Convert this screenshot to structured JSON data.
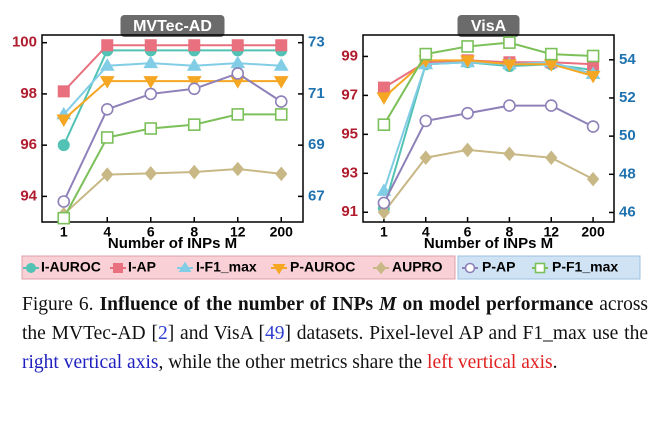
{
  "chart_data": [
    {
      "type": "line",
      "title": "MVTec-AD",
      "xlabel": "Number of INPs M",
      "categories": [
        "1",
        "4",
        "6",
        "8",
        "12",
        "200"
      ],
      "ylim": [
        93,
        100.3
      ],
      "yticks": [
        94,
        96,
        98,
        100
      ],
      "y2lim": [
        66,
        73.3
      ],
      "y2ticks": [
        67,
        69,
        71,
        73
      ],
      "series": [
        {
          "name": "I-AUROC",
          "color": "#52c2b4",
          "marker": "circle",
          "values": [
            96.0,
            99.7,
            99.7,
            99.7,
            99.7,
            99.7
          ]
        },
        {
          "name": "I-AP",
          "color": "#e8707f",
          "marker": "square",
          "values": [
            98.1,
            99.9,
            99.9,
            99.9,
            99.9,
            99.9
          ]
        },
        {
          "name": "I-F1_max",
          "color": "#82cde6",
          "marker": "triangle-up",
          "values": [
            97.2,
            99.1,
            99.2,
            99.1,
            99.2,
            99.1
          ]
        },
        {
          "name": "P-AUROC",
          "color": "#f5a623",
          "marker": "triangle-down",
          "values": [
            97.0,
            98.5,
            98.5,
            98.5,
            98.5,
            98.5
          ]
        },
        {
          "name": "AUPRO",
          "color": "#c8b886",
          "marker": "diamond",
          "values": [
            93.3,
            94.85,
            94.9,
            94.95,
            95.07,
            94.88
          ]
        },
        {
          "name": "P-AP",
          "color": "#8e80b8",
          "marker": "circle-open",
          "axis": "y2",
          "values": [
            66.8,
            70.4,
            71.0,
            71.2,
            71.8,
            70.7
          ]
        },
        {
          "name": "P-F1_max",
          "color": "#7cc05a",
          "marker": "square-open",
          "axis": "y2",
          "values": [
            66.15,
            69.3,
            69.65,
            69.8,
            70.2,
            70.2
          ]
        }
      ]
    },
    {
      "type": "line",
      "title": "VisA",
      "xlabel": "Number of INPs M",
      "categories": [
        "1",
        "4",
        "6",
        "8",
        "12",
        "200"
      ],
      "ylim": [
        90.5,
        100.1
      ],
      "yticks": [
        91,
        93,
        95,
        97,
        99
      ],
      "y2lim": [
        45.5,
        55.3
      ],
      "y2ticks": [
        46,
        48,
        50,
        52,
        54
      ],
      "series": [
        {
          "name": "I-AUROC",
          "color": "#52c2b4",
          "marker": "circle",
          "values": [
            91.2,
            98.6,
            98.7,
            98.5,
            98.6,
            98.3
          ]
        },
        {
          "name": "I-AP",
          "color": "#e8707f",
          "marker": "square",
          "values": [
            97.4,
            98.7,
            98.8,
            98.7,
            98.7,
            98.6
          ]
        },
        {
          "name": "I-F1_max",
          "color": "#82cde6",
          "marker": "triangle-up",
          "values": [
            92.1,
            98.6,
            98.7,
            98.6,
            98.7,
            98.1
          ]
        },
        {
          "name": "P-AUROC",
          "color": "#f5a623",
          "marker": "triangle-down",
          "values": [
            96.9,
            98.8,
            98.8,
            98.6,
            98.6,
            98.0
          ]
        },
        {
          "name": "AUPRO",
          "color": "#c8b886",
          "marker": "diamond",
          "values": [
            91.0,
            93.8,
            94.2,
            94.0,
            93.8,
            92.7
          ]
        },
        {
          "name": "P-AP",
          "color": "#8e80b8",
          "marker": "circle-open",
          "axis": "y2",
          "values": [
            46.5,
            50.8,
            51.2,
            51.6,
            51.6,
            50.5
          ]
        },
        {
          "name": "P-F1_max",
          "color": "#7cc05a",
          "marker": "square-open",
          "axis": "y2",
          "values": [
            50.6,
            54.3,
            54.7,
            54.9,
            54.3,
            54.2
          ]
        }
      ]
    }
  ],
  "caption": {
    "label": "Figure 6.",
    "bold_start": "Influence of the number of INPs ",
    "bold_var": "M",
    "bold_end": " on model performance",
    "text_1": " across the MVTec-AD [",
    "ref_1": "2",
    "text_2": "] and VisA [",
    "ref_2": "49",
    "text_3": "] datasets. Pixel-level AP and F1_max use the ",
    "blue_text": "right vertical axis",
    "text_4": ", while the other metrics share the ",
    "red_text": "left vertical axis",
    "text_5": "."
  }
}
